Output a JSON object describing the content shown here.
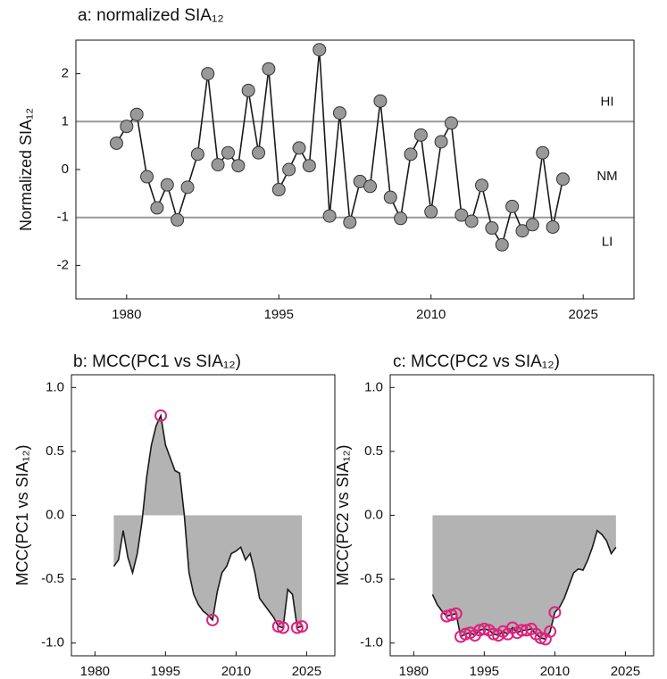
{
  "chart_data": [
    {
      "type": "line",
      "title": "a: normalized SIA₁₂",
      "y_label": "Normalized SIA₁₂",
      "x": [
        1979,
        1980,
        1981,
        1982,
        1983,
        1984,
        1985,
        1986,
        1987,
        1988,
        1989,
        1990,
        1991,
        1992,
        1993,
        1994,
        1995,
        1996,
        1997,
        1998,
        1999,
        2000,
        2001,
        2002,
        2003,
        2004,
        2005,
        2006,
        2007,
        2008,
        2009,
        2010,
        2011,
        2012,
        2013,
        2014,
        2015,
        2016,
        2017,
        2018,
        2019,
        2020,
        2021,
        2022,
        2023
      ],
      "values": [
        0.55,
        0.9,
        1.15,
        -0.15,
        -0.8,
        -0.32,
        -1.05,
        -0.37,
        0.32,
        2.0,
        0.1,
        0.35,
        0.08,
        1.65,
        0.35,
        2.1,
        -0.42,
        0.0,
        0.45,
        0.08,
        2.5,
        -0.97,
        1.18,
        -1.1,
        -0.25,
        -0.35,
        1.43,
        -0.58,
        -1.02,
        0.32,
        0.72,
        -0.88,
        0.58,
        0.97,
        -0.95,
        -1.08,
        -0.33,
        -1.22,
        -1.57,
        -0.77,
        -1.28,
        -1.15,
        0.35,
        -1.2,
        -0.2
      ],
      "color": "#999999",
      "line_color": "#1a1a1a",
      "hlines": [
        1,
        -1
      ],
      "hline_color": "#999999",
      "band_labels": [
        "HI",
        "NM",
        "LI"
      ],
      "xlim": [
        1975,
        2030
      ],
      "xticks": [
        1980,
        1995,
        2010,
        2025
      ],
      "ylim": [
        -2.7,
        2.7
      ],
      "yticks": [
        -2,
        -1,
        0,
        1,
        2
      ]
    },
    {
      "type": "area",
      "title": "b: MCC(PC1 vs SIA₁₂)",
      "y_label": "MCC(PC1 vs SIA₁₂)",
      "x": [
        1984,
        1985,
        1986,
        1987,
        1988,
        1989,
        1990,
        1991,
        1992,
        1993,
        1994,
        1995,
        1996,
        1997,
        1998,
        1999,
        2000,
        2001,
        2002,
        2003,
        2004,
        2005,
        2006,
        2007,
        2008,
        2009,
        2010,
        2011,
        2012,
        2013,
        2014,
        2015,
        2016,
        2017,
        2018,
        2019,
        2020,
        2021,
        2022,
        2023,
        2024
      ],
      "values": [
        -0.4,
        -0.35,
        -0.12,
        -0.33,
        -0.45,
        -0.3,
        -0.05,
        0.3,
        0.55,
        0.7,
        0.78,
        0.55,
        0.45,
        0.35,
        0.33,
        0.0,
        -0.45,
        -0.62,
        -0.7,
        -0.75,
        -0.78,
        -0.82,
        -0.6,
        -0.45,
        -0.4,
        -0.3,
        -0.28,
        -0.25,
        -0.35,
        -0.3,
        -0.45,
        -0.65,
        -0.7,
        -0.75,
        -0.8,
        -0.87,
        -0.88,
        -0.58,
        -0.62,
        -0.88,
        -0.87
      ],
      "color": "#b3b3b3",
      "line_color": "#1a1a1a",
      "highlight_indices": [
        10,
        21,
        35,
        36,
        39,
        40
      ],
      "highlight_color": "#e0207f",
      "xlim": [
        1975,
        2031
      ],
      "xticks": [
        1980,
        1995,
        2010,
        2025
      ],
      "ylim": [
        -1.1,
        1.1
      ],
      "yticks": [
        {
          "value": -1,
          "label": "-1.0"
        },
        -0.5,
        {
          "value": 0,
          "label": "0.0"
        },
        0.5,
        {
          "value": 1,
          "label": "1.0"
        }
      ]
    },
    {
      "type": "area",
      "title": "c: MCC(PC2 vs SIA₁₂)",
      "y_label": "MCC(PC2 vs SIA₁₂)",
      "x": [
        1984,
        1985,
        1986,
        1987,
        1988,
        1989,
        1990,
        1991,
        1992,
        1993,
        1994,
        1995,
        1996,
        1997,
        1998,
        1999,
        2000,
        2001,
        2002,
        2003,
        2004,
        2005,
        2006,
        2007,
        2008,
        2009,
        2010,
        2011,
        2012,
        2013,
        2014,
        2015,
        2016,
        2017,
        2018,
        2019,
        2020,
        2021,
        2022,
        2023
      ],
      "values": [
        -0.62,
        -0.7,
        -0.75,
        -0.79,
        -0.78,
        -0.77,
        -0.95,
        -0.93,
        -0.92,
        -0.94,
        -0.9,
        -0.89,
        -0.9,
        -0.93,
        -0.94,
        -0.91,
        -0.93,
        -0.88,
        -0.92,
        -0.9,
        -0.9,
        -0.89,
        -0.93,
        -0.96,
        -0.97,
        -0.91,
        -0.76,
        -0.72,
        -0.65,
        -0.55,
        -0.45,
        -0.42,
        -0.43,
        -0.35,
        -0.25,
        -0.12,
        -0.15,
        -0.2,
        -0.3,
        -0.25
      ],
      "color": "#b3b3b3",
      "line_color": "#1a1a1a",
      "highlight_indices": [
        3,
        4,
        5,
        6,
        7,
        8,
        9,
        10,
        11,
        12,
        13,
        14,
        15,
        16,
        17,
        18,
        19,
        20,
        21,
        22,
        23,
        24,
        25,
        26
      ],
      "highlight_color": "#e0207f",
      "xlim": [
        1975,
        2031
      ],
      "xticks": [
        1980,
        1995,
        2010,
        2025
      ],
      "ylim": [
        -1.1,
        1.1
      ],
      "yticks": [
        {
          "value": -1,
          "label": "-1.0"
        },
        -0.5,
        {
          "value": 0,
          "label": "0.0"
        },
        0.5,
        {
          "value": 1,
          "label": "1.0"
        }
      ]
    }
  ]
}
